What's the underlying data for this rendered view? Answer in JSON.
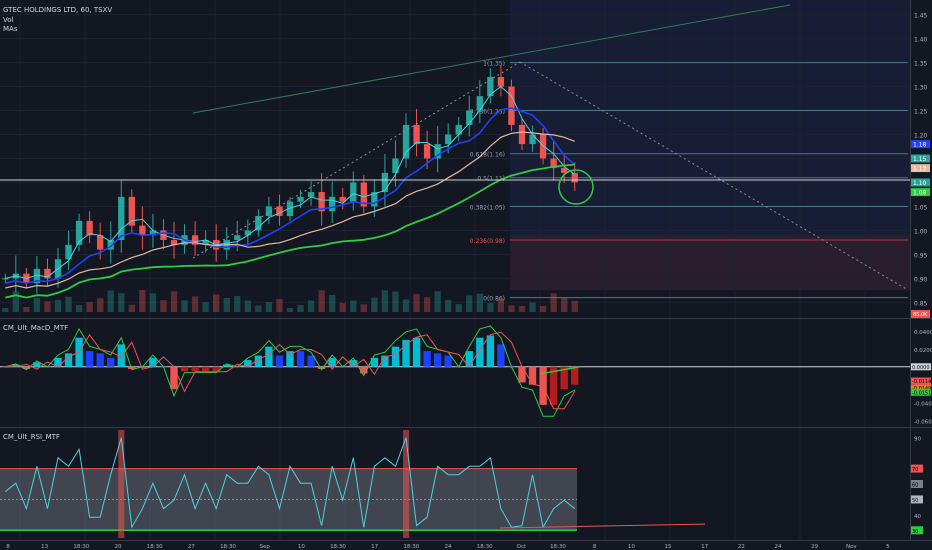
{
  "header": {
    "symbol_title": "GTEC HOLDINGS LTD, 60, TSXV",
    "vol_label": "Vol",
    "mas_label": "MAs"
  },
  "panes": {
    "macd": {
      "title": "CM_Ult_MacD_MTF"
    },
    "rsi": {
      "title": "CM_Ult_RSI_MTF"
    }
  },
  "colors": {
    "bg": "#131722",
    "up": "#26a69a",
    "down": "#ef5350",
    "ma_fast": "#4dd0e1",
    "ma_blue": "#1e40ff",
    "ma_tan": "#e6b89c",
    "ma_green": "#2ecc40",
    "fib_line": "#5b7c99",
    "highlight": "#2ecc40"
  },
  "fib_levels": [
    {
      "label": "1(1.35)",
      "price": 1.35
    },
    {
      "label": "0.786(1.25)",
      "price": 1.25
    },
    {
      "label": "0.618(1.16)",
      "price": 1.16
    },
    {
      "label": "0.5(1.11)",
      "price": 1.11
    },
    {
      "label": "0.382(1.05)",
      "price": 1.05
    },
    {
      "label": "0.236(0.98)",
      "price": 0.98
    },
    {
      "label": "0(0.86)",
      "price": 0.86
    }
  ],
  "price_axis": {
    "ticks": [
      "1.45",
      "1.40",
      "1.35",
      "1.30",
      "1.25",
      "1.20",
      "1.15",
      "1.10",
      "1.05",
      "1.00",
      "0.95",
      "0.90",
      "0.85"
    ],
    "markers": [
      {
        "label": "1.18",
        "price": 1.18,
        "color": "#1e40ff"
      },
      {
        "label": "1.15",
        "price": 1.15,
        "color": "#26a69a"
      },
      {
        "label": "1.13",
        "price": 1.13,
        "color": "#e6b89c"
      },
      {
        "label": "1.10",
        "price": 1.1,
        "color": "#26a69a"
      },
      {
        "label": "1.08",
        "price": 1.08,
        "color": "#2ecc40"
      }
    ],
    "volume_marker": "85.0K"
  },
  "macd_axis": {
    "ticks": [
      "0.0400",
      "0.0200",
      "0.0000",
      "-0.0200",
      "-0.0400",
      "-0.0600"
    ],
    "markers": [
      "0.0000",
      "-0.0114",
      "-0.0149",
      "-0.0151"
    ]
  },
  "rsi_axis": {
    "ticks": [
      "90",
      "70",
      "50",
      "40"
    ],
    "markers": [
      "70",
      "60",
      "50",
      "30"
    ]
  },
  "time_axis": {
    "labels": [
      "8",
      "13",
      "18:30",
      "20",
      "18:30",
      "27",
      "18:30",
      "Sep",
      "10",
      "18:30",
      "17",
      "18:30",
      "24",
      "18:30",
      "Oct",
      "18:30",
      "8",
      "10",
      "15",
      "17",
      "22",
      "24",
      "29",
      "Nov",
      "5"
    ]
  },
  "chart_data": {
    "type": "candlestick",
    "title": "GTEC HOLDINGS LTD, 60, TSXV",
    "timeframe": "60",
    "ylim": [
      0.83,
      1.47
    ],
    "close_series": [
      0.9,
      0.91,
      0.89,
      0.92,
      0.9,
      0.94,
      0.97,
      1.02,
      0.99,
      0.96,
      0.98,
      1.07,
      1.01,
      0.99,
      1.0,
      0.98,
      0.97,
      0.99,
      0.97,
      0.98,
      0.96,
      0.98,
      0.99,
      1.0,
      1.03,
      1.05,
      1.03,
      1.06,
      1.07,
      1.08,
      1.04,
      1.07,
      1.06,
      1.1,
      1.05,
      1.08,
      1.12,
      1.15,
      1.22,
      1.18,
      1.15,
      1.18,
      1.2,
      1.22,
      1.25,
      1.28,
      1.32,
      1.3,
      1.22,
      1.18,
      1.2,
      1.15,
      1.13,
      1.12,
      1.1
    ],
    "fib_range": [
      0.86,
      1.35
    ],
    "last_price": 1.1,
    "macd_ylim": [
      -0.065,
      0.05
    ],
    "rsi_ylim": [
      25,
      95
    ],
    "rsi_bands": [
      30,
      70
    ]
  }
}
